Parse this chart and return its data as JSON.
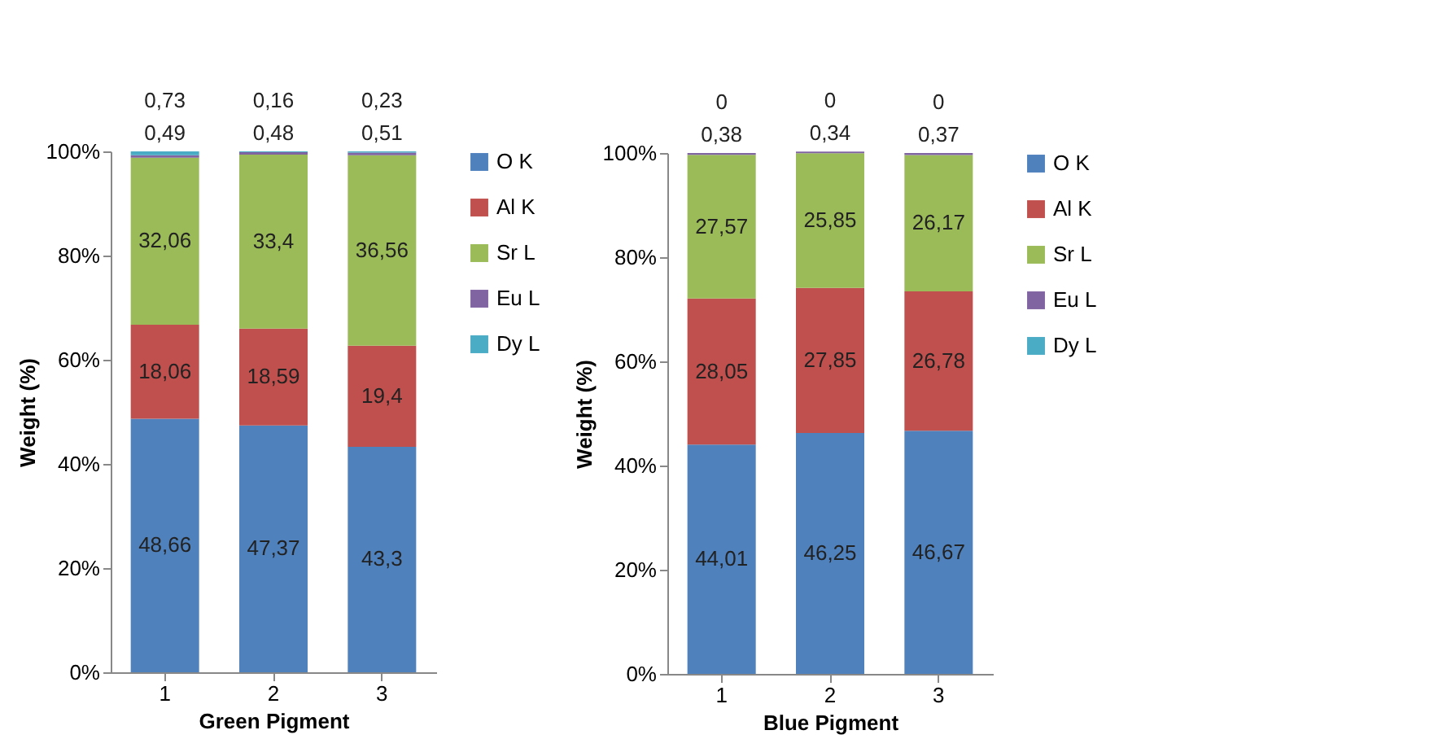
{
  "chart_data": [
    {
      "type": "bar",
      "stacked": true,
      "xlabel": "Green Pigment",
      "ylabel": "Weight (%)",
      "categories": [
        "1",
        "2",
        "3"
      ],
      "ylim": [
        0,
        100
      ],
      "yticks": [
        {
          "value": 0,
          "label": "0%"
        },
        {
          "value": 20,
          "label": "20%"
        },
        {
          "value": 40,
          "label": "40%"
        },
        {
          "value": 60,
          "label": "60%"
        },
        {
          "value": 80,
          "label": "80%"
        },
        {
          "value": 100,
          "label": "100%"
        }
      ],
      "legend": "right",
      "series": [
        {
          "name": "O K",
          "color": "#4f81bd",
          "values": [
            48.66,
            47.37,
            43.3
          ],
          "value_labels": [
            "48,66",
            "47,37",
            "43,3"
          ]
        },
        {
          "name": "Al K",
          "color": "#c0504d",
          "values": [
            18.06,
            18.59,
            19.4
          ],
          "value_labels": [
            "18,06",
            "18,59",
            "19,4"
          ]
        },
        {
          "name": "Sr L",
          "color": "#9bbb59",
          "values": [
            32.06,
            33.4,
            36.56
          ],
          "value_labels": [
            "32,06",
            "33,4",
            "36,56"
          ]
        },
        {
          "name": "Eu L",
          "color": "#8064a2",
          "values": [
            0.49,
            0.48,
            0.51
          ],
          "value_labels": [
            "0,49",
            "0,48",
            "0,51"
          ]
        },
        {
          "name": "Dy L",
          "color": "#4bacc6",
          "values": [
            0.73,
            0.16,
            0.23
          ],
          "value_labels": [
            "0,73",
            "0,16",
            "0,23"
          ]
        }
      ]
    },
    {
      "type": "bar",
      "stacked": true,
      "xlabel": "Blue Pigment",
      "ylabel": "Weight (%)",
      "categories": [
        "1",
        "2",
        "3"
      ],
      "ylim": [
        0,
        100
      ],
      "yticks": [
        {
          "value": 0,
          "label": "0%"
        },
        {
          "value": 20,
          "label": "20%"
        },
        {
          "value": 40,
          "label": "40%"
        },
        {
          "value": 60,
          "label": "60%"
        },
        {
          "value": 80,
          "label": "80%"
        },
        {
          "value": 100,
          "label": "100%"
        }
      ],
      "legend": "right",
      "series": [
        {
          "name": "O K",
          "color": "#4f81bd",
          "values": [
            44.01,
            46.25,
            46.67
          ],
          "value_labels": [
            "44,01",
            "46,25",
            "46,67"
          ]
        },
        {
          "name": "Al K",
          "color": "#c0504d",
          "values": [
            28.05,
            27.85,
            26.78
          ],
          "value_labels": [
            "28,05",
            "27,85",
            "26,78"
          ]
        },
        {
          "name": "Sr L",
          "color": "#9bbb59",
          "values": [
            27.57,
            25.85,
            26.17
          ],
          "value_labels": [
            "27,57",
            "25,85",
            "26,17"
          ]
        },
        {
          "name": "Eu L",
          "color": "#8064a2",
          "values": [
            0.38,
            0.34,
            0.37
          ],
          "value_labels": [
            "0,38",
            "0,34",
            "0,37"
          ]
        },
        {
          "name": "Dy L",
          "color": "#4bacc6",
          "values": [
            0,
            0,
            0
          ],
          "value_labels": [
            "0",
            "0",
            "0"
          ]
        }
      ]
    }
  ]
}
